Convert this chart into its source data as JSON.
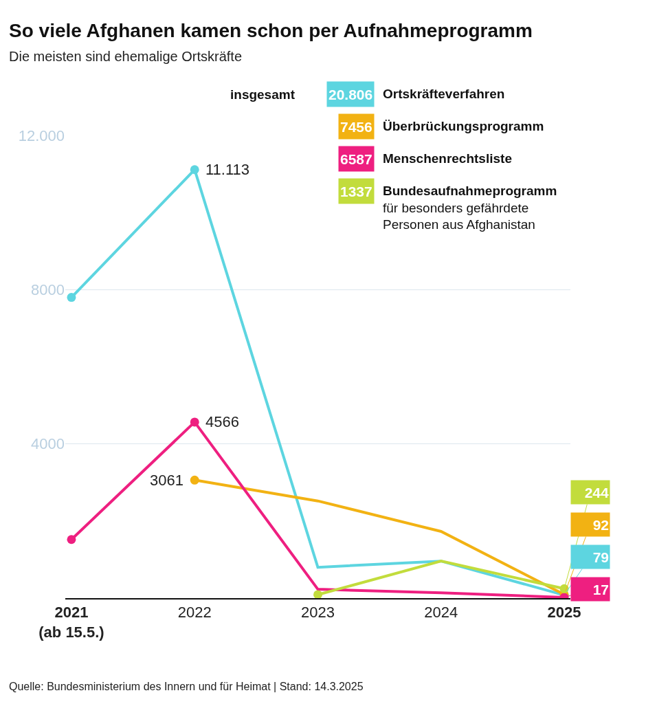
{
  "chart_data": {
    "type": "line",
    "title": "So viele Afghanen kamen schon per Aufnahmeprogramm",
    "subtitle": "Die meisten sind ehemalige Ortskräfte",
    "categories": [
      "2021\n(ab 15.5.)",
      "2022",
      "2023",
      "2024",
      "2025"
    ],
    "series": [
      {
        "name": "Ortskräfteverfahren",
        "color": "#5dd5e0",
        "values": [
          7800,
          11113,
          800,
          960,
          79
        ],
        "value_labels": [
          null,
          "11.113",
          null,
          null,
          "79"
        ]
      },
      {
        "name": "Überbrückungsprogramm",
        "color": "#f2b213",
        "values": [
          null,
          3061,
          2520,
          1730,
          92
        ],
        "value_labels": [
          null,
          "3061",
          null,
          null,
          "92"
        ]
      },
      {
        "name": "Menschenrechtsliste",
        "color": "#ee1f80",
        "values": [
          1520,
          4566,
          230,
          140,
          17
        ],
        "value_labels": [
          null,
          "4566",
          null,
          null,
          "17"
        ]
      },
      {
        "name": "Bundesaufnahmeprogramm\nfür besonders gefährdete\nPersonen aus Afghanistan",
        "color": "#c2dc3c",
        "values": [
          null,
          null,
          90,
          960,
          244
        ],
        "value_labels": [
          null,
          null,
          null,
          null,
          "244"
        ]
      }
    ],
    "legend_title": "insgesamt",
    "annotations": [
      "20.806",
      "7456",
      "6587",
      "1337",
      "Quelle: Bundesministerium des Innern und für Heimat | Stand: 14.3.2025"
    ],
    "ylim": [
      0,
      12000
    ],
    "yticks": [
      {
        "value": 4000,
        "label": "4000"
      },
      {
        "value": 8000,
        "label": "8000"
      },
      {
        "value": 12000,
        "label": "12.000"
      }
    ],
    "grid": "y",
    "legend": "top right",
    "marker": "circle",
    "line_style": "solid"
  }
}
